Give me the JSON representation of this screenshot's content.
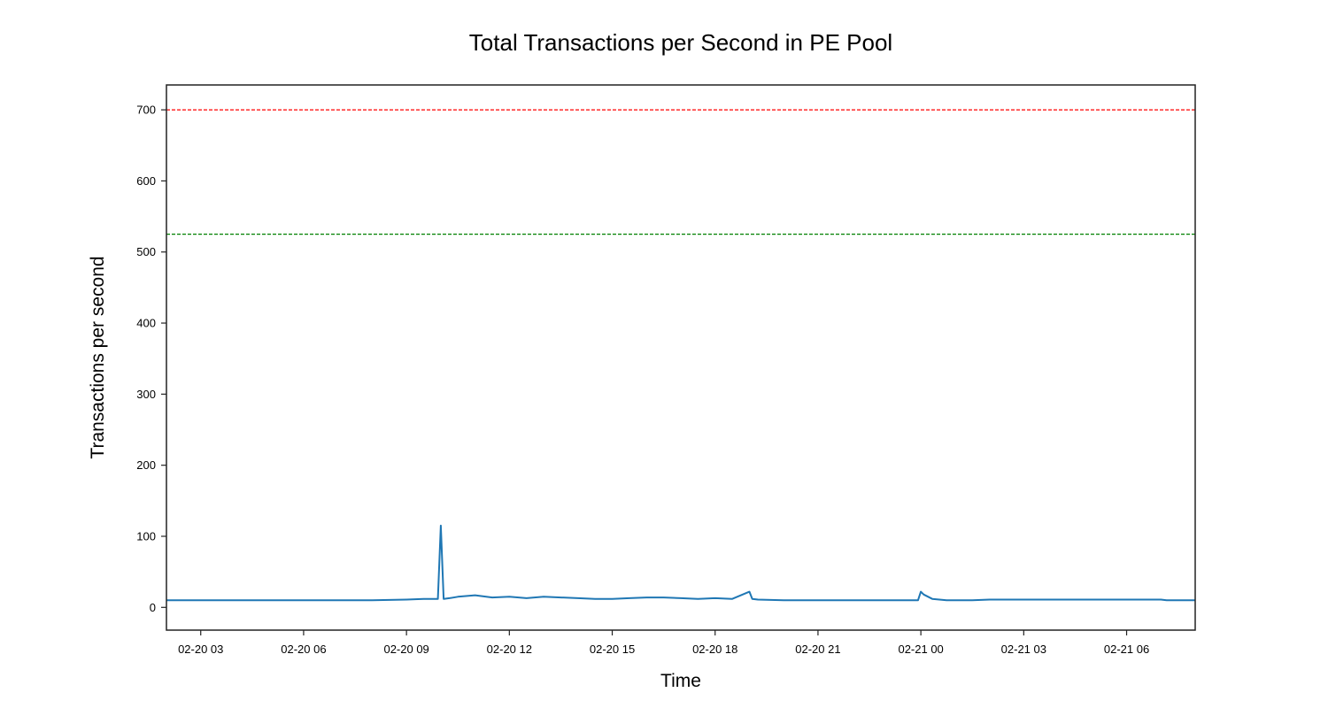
{
  "chart_data": {
    "type": "line",
    "title": "Total Transactions per Second in PE Pool",
    "xlabel": "Time",
    "ylabel": "Transactions per second",
    "x_ticks": [
      "02-20 03",
      "02-20 06",
      "02-20 09",
      "02-20 12",
      "02-20 15",
      "02-20 18",
      "02-20 21",
      "02-21 00",
      "02-21 03",
      "02-21 06"
    ],
    "xlim": [
      "02-20 02:00",
      "02-21 08:00"
    ],
    "ylim": [
      -32,
      735
    ],
    "y_ticks": [
      0,
      100,
      200,
      300,
      400,
      500,
      600,
      700
    ],
    "grid": false,
    "reference_lines": [
      {
        "y": 700,
        "color": "#ff0000",
        "style": "dashed"
      },
      {
        "y": 525,
        "color": "#008000",
        "style": "dashed"
      }
    ],
    "series_color": "#1f77b4",
    "series": [
      {
        "x": [
          "02-20 02:00",
          "02-20 07:00",
          "02-20 08:00",
          "02-20 09:00",
          "02-20 09:30",
          "02-20 09:55",
          "02-20 10:00",
          "02-20 10:05",
          "02-20 10:15",
          "02-20 10:30",
          "02-20 11:00",
          "02-20 11:30",
          "02-20 12:00",
          "02-20 12:30",
          "02-20 13:00",
          "02-20 13:30",
          "02-20 14:00",
          "02-20 14:30",
          "02-20 15:00",
          "02-20 15:30",
          "02-20 16:00",
          "02-20 16:30",
          "02-20 17:00",
          "02-20 17:30",
          "02-20 18:00",
          "02-20 18:30",
          "02-20 19:00",
          "02-20 19:05",
          "02-20 19:15",
          "02-20 20:00",
          "02-20 21:00",
          "02-20 22:00",
          "02-20 23:00",
          "02-20 23:55",
          "02-21 00:00",
          "02-21 00:05",
          "02-21 00:20",
          "02-21 00:45",
          "02-21 01:30",
          "02-21 02:00",
          "02-21 03:00",
          "02-21 05:00",
          "02-21 07:00",
          "02-21 07:10",
          "02-21 08:00"
        ],
        "y": [
          10,
          10,
          10,
          11,
          12,
          12,
          115,
          12,
          13,
          15,
          17,
          14,
          15,
          13,
          15,
          14,
          13,
          12,
          12,
          13,
          14,
          14,
          13,
          12,
          13,
          12,
          22,
          12,
          11,
          10,
          10,
          10,
          10,
          10,
          22,
          18,
          12,
          10,
          10,
          11,
          11,
          11,
          11,
          10,
          10
        ]
      }
    ]
  }
}
